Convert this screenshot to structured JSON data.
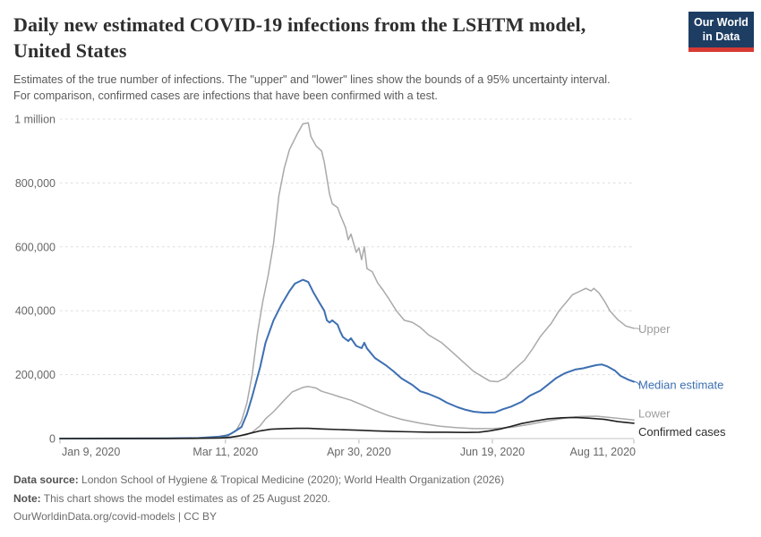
{
  "header": {
    "title_line1": "Daily new estimated COVID-19 infections from the LSHTM model,",
    "title_line2": "United States",
    "subtitle_line1": "Estimates of the true number of infections. The \"upper\" and \"lower\" lines show the bounds of a 95% uncertainty interval.",
    "subtitle_line2": "For comparison, confirmed cases are infections that have been confirmed with a test.",
    "logo": {
      "line1": "Our World",
      "line2": "in Data",
      "bg_color": "#1d3d63",
      "accent_color": "#d73a33"
    }
  },
  "footer": {
    "source_label": "Data source:",
    "source_text": " London School of Hygiene & Tropical Medicine (2020); World Health Organization (2026)",
    "note_label": "Note:",
    "note_text": " This chart shows the model estimates as of 25 August 2020.",
    "link_text": "OurWorldinData.org/covid-models | CC BY"
  },
  "chart_data": {
    "type": "line",
    "title": "Daily new estimated COVID-19 infections from the LSHTM model, United States",
    "x_unit": "days since 2020-01-09",
    "x_domain": [
      0,
      215
    ],
    "y_domain": [
      0,
      1000000
    ],
    "grid": "dashed-horizontal",
    "legend_position": "right-end-labels",
    "colors": {
      "median_blue": "#3d6fb2",
      "uncertainty_gray": "#a9a9a9",
      "confirmed_black": "#1f1f1f",
      "gridline": "#dcdcdc",
      "axis": "#c4c4c4",
      "tick_text": "#676767"
    },
    "x_ticks": [
      {
        "label": "Jan 9, 2020",
        "day": 0,
        "align": "start"
      },
      {
        "label": "Mar 11, 2020",
        "day": 62,
        "align": "middle"
      },
      {
        "label": "Apr 30, 2020",
        "day": 112,
        "align": "middle"
      },
      {
        "label": "Jun 19, 2020",
        "day": 162,
        "align": "middle"
      },
      {
        "label": "Aug 11, 2020",
        "day": 215,
        "align": "end"
      }
    ],
    "y_ticks": [
      {
        "value": 0,
        "label": "0"
      },
      {
        "value": 200000,
        "label": "200,000"
      },
      {
        "value": 400000,
        "label": "400,000"
      },
      {
        "value": 600000,
        "label": "600,000"
      },
      {
        "value": 800000,
        "label": "800,000"
      },
      {
        "value": 1000000,
        "label": "1 million"
      }
    ],
    "series": [
      {
        "name": "Upper",
        "color": "#a9a9a9",
        "label_color": "#9d9d9d",
        "width": 1.5,
        "label_dy": 1,
        "connector": true,
        "points": [
          [
            0,
            0
          ],
          [
            30,
            0
          ],
          [
            45,
            500
          ],
          [
            52,
            2000
          ],
          [
            58,
            5000
          ],
          [
            62,
            10000
          ],
          [
            64,
            15000
          ],
          [
            66,
            25000
          ],
          [
            68,
            55000
          ],
          [
            70,
            110000
          ],
          [
            72,
            200000
          ],
          [
            74,
            330000
          ],
          [
            76,
            430000
          ],
          [
            78,
            510000
          ],
          [
            80,
            610000
          ],
          [
            82,
            760000
          ],
          [
            84,
            845000
          ],
          [
            86,
            905000
          ],
          [
            89,
            955000
          ],
          [
            91,
            985000
          ],
          [
            93,
            988000
          ],
          [
            94,
            945000
          ],
          [
            96,
            915000
          ],
          [
            98,
            900000
          ],
          [
            99,
            865000
          ],
          [
            101,
            765000
          ],
          [
            102,
            735000
          ],
          [
            104,
            723000
          ],
          [
            105,
            700000
          ],
          [
            107,
            660000
          ],
          [
            108,
            622000
          ],
          [
            109,
            640000
          ],
          [
            111,
            583000
          ],
          [
            112,
            597000
          ],
          [
            113,
            560000
          ],
          [
            114,
            600000
          ],
          [
            115,
            532000
          ],
          [
            117,
            522000
          ],
          [
            119,
            487000
          ],
          [
            121,
            465000
          ],
          [
            123,
            440000
          ],
          [
            126,
            400000
          ],
          [
            129,
            370000
          ],
          [
            132,
            364000
          ],
          [
            135,
            348000
          ],
          [
            138,
            325000
          ],
          [
            143,
            300000
          ],
          [
            147,
            270000
          ],
          [
            151,
            240000
          ],
          [
            155,
            210000
          ],
          [
            159,
            190000
          ],
          [
            161,
            180000
          ],
          [
            164,
            178000
          ],
          [
            167,
            190000
          ],
          [
            170,
            215000
          ],
          [
            174,
            245000
          ],
          [
            177,
            280000
          ],
          [
            180,
            320000
          ],
          [
            184,
            360000
          ],
          [
            187,
            400000
          ],
          [
            190,
            430000
          ],
          [
            192,
            450000
          ],
          [
            194,
            458000
          ],
          [
            197,
            470000
          ],
          [
            199,
            462000
          ],
          [
            200,
            470000
          ],
          [
            202,
            455000
          ],
          [
            204,
            430000
          ],
          [
            206,
            400000
          ],
          [
            209,
            372000
          ],
          [
            212,
            352000
          ],
          [
            215,
            345000
          ]
        ]
      },
      {
        "name": "Median estimate",
        "color": "#3d6fb2",
        "label_color": "#3d6fb2",
        "width": 2,
        "label_dy": 4,
        "connector": true,
        "points": [
          [
            0,
            0
          ],
          [
            40,
            500
          ],
          [
            52,
            2000
          ],
          [
            60,
            6000
          ],
          [
            63,
            10000
          ],
          [
            65,
            20000
          ],
          [
            68,
            36000
          ],
          [
            70,
            76000
          ],
          [
            72,
            132000
          ],
          [
            75,
            224000
          ],
          [
            77,
            300000
          ],
          [
            80,
            370000
          ],
          [
            83,
            420000
          ],
          [
            86,
            462000
          ],
          [
            88,
            485000
          ],
          [
            91,
            497000
          ],
          [
            93,
            490000
          ],
          [
            95,
            457000
          ],
          [
            97,
            428000
          ],
          [
            99,
            400000
          ],
          [
            100,
            370000
          ],
          [
            101,
            363000
          ],
          [
            102,
            370000
          ],
          [
            104,
            356000
          ],
          [
            105,
            335000
          ],
          [
            106,
            318000
          ],
          [
            108,
            305000
          ],
          [
            109,
            314000
          ],
          [
            111,
            290000
          ],
          [
            113,
            283000
          ],
          [
            114,
            300000
          ],
          [
            115,
            282000
          ],
          [
            118,
            252000
          ],
          [
            122,
            230000
          ],
          [
            125,
            210000
          ],
          [
            128,
            188000
          ],
          [
            132,
            168000
          ],
          [
            135,
            148000
          ],
          [
            138,
            140000
          ],
          [
            142,
            126000
          ],
          [
            145,
            112000
          ],
          [
            149,
            98000
          ],
          [
            152,
            90000
          ],
          [
            155,
            84000
          ],
          [
            159,
            81000
          ],
          [
            163,
            82000
          ],
          [
            166,
            92000
          ],
          [
            169,
            100000
          ],
          [
            173,
            115000
          ],
          [
            176,
            134000
          ],
          [
            180,
            150000
          ],
          [
            183,
            170000
          ],
          [
            186,
            190000
          ],
          [
            189,
            204000
          ],
          [
            193,
            216000
          ],
          [
            196,
            220000
          ],
          [
            198,
            224000
          ],
          [
            201,
            230000
          ],
          [
            203,
            232000
          ],
          [
            205,
            226000
          ],
          [
            208,
            212000
          ],
          [
            210,
            196000
          ],
          [
            213,
            184000
          ],
          [
            215,
            178000
          ]
        ]
      },
      {
        "name": "Lower",
        "color": "#a9a9a9",
        "label_color": "#9d9d9d",
        "width": 1.5,
        "label_dy": -7,
        "connector": false,
        "points": [
          [
            0,
            0
          ],
          [
            45,
            500
          ],
          [
            58,
            2000
          ],
          [
            66,
            6000
          ],
          [
            70,
            12000
          ],
          [
            72,
            20000
          ],
          [
            75,
            40000
          ],
          [
            77,
            62000
          ],
          [
            80,
            84000
          ],
          [
            84,
            120000
          ],
          [
            87,
            146000
          ],
          [
            91,
            160000
          ],
          [
            93,
            163000
          ],
          [
            96,
            158000
          ],
          [
            98,
            148000
          ],
          [
            102,
            138000
          ],
          [
            105,
            130000
          ],
          [
            109,
            120000
          ],
          [
            113,
            106000
          ],
          [
            118,
            88000
          ],
          [
            123,
            72000
          ],
          [
            128,
            60000
          ],
          [
            135,
            48000
          ],
          [
            142,
            39000
          ],
          [
            149,
            34000
          ],
          [
            155,
            31000
          ],
          [
            162,
            31000
          ],
          [
            169,
            35000
          ],
          [
            175,
            43000
          ],
          [
            182,
            54000
          ],
          [
            189,
            64000
          ],
          [
            195,
            69000
          ],
          [
            201,
            70000
          ],
          [
            207,
            65000
          ],
          [
            215,
            58000
          ]
        ]
      },
      {
        "name": "Confirmed cases",
        "color": "#1f1f1f",
        "label_color": "#2b2b2b",
        "width": 1.6,
        "label_dy": 10,
        "connector": false,
        "points": [
          [
            0,
            0
          ],
          [
            40,
            200
          ],
          [
            50,
            500
          ],
          [
            60,
            2000
          ],
          [
            64,
            4000
          ],
          [
            67,
            8000
          ],
          [
            71,
            16000
          ],
          [
            75,
            24000
          ],
          [
            79,
            29000
          ],
          [
            84,
            31000
          ],
          [
            89,
            32000
          ],
          [
            93,
            32000
          ],
          [
            98,
            30000
          ],
          [
            105,
            28000
          ],
          [
            112,
            26000
          ],
          [
            118,
            24000
          ],
          [
            125,
            22000
          ],
          [
            132,
            21000
          ],
          [
            138,
            20000
          ],
          [
            145,
            20000
          ],
          [
            152,
            19000
          ],
          [
            157,
            20000
          ],
          [
            161,
            24000
          ],
          [
            165,
            30000
          ],
          [
            169,
            38000
          ],
          [
            173,
            47000
          ],
          [
            178,
            55000
          ],
          [
            183,
            62000
          ],
          [
            188,
            65000
          ],
          [
            193,
            66000
          ],
          [
            198,
            64000
          ],
          [
            204,
            60000
          ],
          [
            209,
            53000
          ],
          [
            215,
            48000
          ]
        ]
      }
    ]
  }
}
